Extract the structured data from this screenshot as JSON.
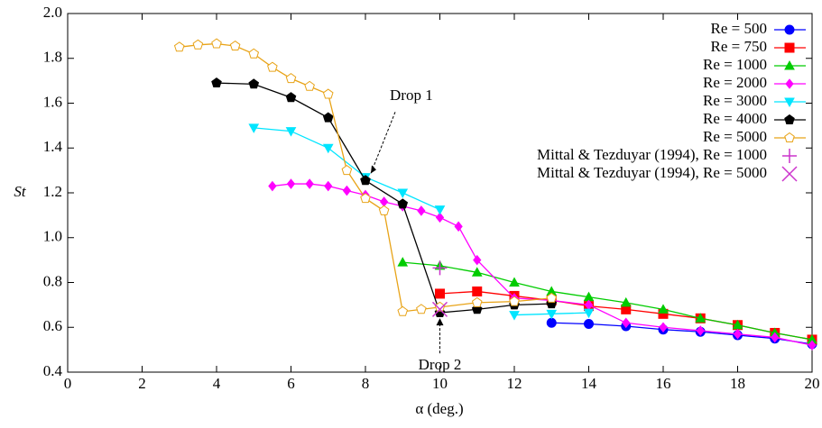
{
  "chart_data": {
    "type": "line",
    "ylabel": "St",
    "xlabel": "α (deg.)",
    "xlim": [
      0,
      20
    ],
    "xticks": [
      0,
      2,
      4,
      6,
      8,
      10,
      12,
      14,
      16,
      18,
      20
    ],
    "ylim": [
      0.4,
      2.0
    ],
    "yticks": [
      0.4,
      0.6,
      0.8,
      {
        "value": 1.0,
        "label": "1.0"
      },
      1.2,
      1.4,
      1.6,
      1.8,
      {
        "value": 2.0,
        "label": "2.0"
      }
    ],
    "legend": "top-right",
    "annotations": [
      {
        "text": "Drop 1",
        "x": 8,
        "y": 1.255
      },
      {
        "text": "Drop 2",
        "x": 10,
        "y": 0.665
      }
    ],
    "series": [
      {
        "name": "Re = 500",
        "color": "#0000ff",
        "marker": "circle",
        "line": true,
        "x": [
          13,
          14,
          15,
          16,
          17,
          18,
          19,
          20
        ],
        "values": [
          0.62,
          0.615,
          0.605,
          0.59,
          0.58,
          0.565,
          0.55,
          0.525
        ]
      },
      {
        "name": "Re = 750",
        "color": "#ff0000",
        "marker": "square",
        "line": true,
        "x": [
          10,
          11,
          12,
          13,
          14,
          15,
          16,
          17,
          18,
          19,
          20
        ],
        "values": [
          0.75,
          0.76,
          0.74,
          0.72,
          0.695,
          0.68,
          0.66,
          0.64,
          0.61,
          0.575,
          0.545
        ]
      },
      {
        "name": "Re = 1000",
        "color": "#00cc00",
        "marker": "triangle",
        "line": true,
        "x": [
          9,
          10,
          11,
          12,
          13,
          14,
          15,
          16,
          17,
          18,
          19,
          20
        ],
        "values": [
          0.89,
          0.875,
          0.845,
          0.8,
          0.76,
          0.735,
          0.71,
          0.68,
          0.64,
          0.61,
          0.575,
          0.545
        ]
      },
      {
        "name": "Re = 2000",
        "color": "#ff00ff",
        "marker": "diamond",
        "line": true,
        "x": [
          5.5,
          6,
          6.5,
          7,
          7.5,
          8,
          8.5,
          9,
          9.5,
          10,
          10.5,
          11,
          12,
          13,
          14,
          15,
          16,
          17,
          18,
          19,
          20
        ],
        "values": [
          1.23,
          1.24,
          1.24,
          1.23,
          1.21,
          1.19,
          1.16,
          1.14,
          1.12,
          1.09,
          1.05,
          0.9,
          0.73,
          0.72,
          0.7,
          0.62,
          0.6,
          0.585,
          0.57,
          0.555,
          0.52
        ]
      },
      {
        "name": "Re = 3000",
        "color": "#00e5ff",
        "marker": "triangle-down",
        "line": true,
        "x": [
          5,
          6,
          7,
          8,
          9,
          10,
          11,
          12,
          13,
          14
        ],
        "values": [
          1.49,
          1.475,
          1.4,
          1.27,
          1.2,
          1.125,
          null,
          0.655,
          0.66,
          0.665
        ]
      },
      {
        "name": "Re = 4000",
        "color": "#000000",
        "marker": "pentagon",
        "line": true,
        "x": [
          4,
          5,
          6,
          7,
          8,
          9,
          10,
          11,
          12,
          13
        ],
        "values": [
          1.69,
          1.685,
          1.625,
          1.535,
          1.255,
          1.15,
          0.665,
          0.68,
          0.7,
          0.705
        ]
      },
      {
        "name": "Re = 5000",
        "color": "#e8a317",
        "marker": "pentagon-open",
        "line": true,
        "x": [
          3,
          3.5,
          4,
          4.5,
          5,
          5.5,
          6,
          6.5,
          7,
          7.5,
          8,
          8.5,
          9,
          9.5,
          10,
          11,
          12,
          13
        ],
        "values": [
          1.85,
          1.86,
          1.865,
          1.855,
          1.82,
          1.76,
          1.71,
          1.675,
          1.64,
          1.3,
          1.175,
          1.12,
          0.67,
          0.68,
          0.69,
          0.71,
          0.715,
          0.73
        ]
      },
      {
        "name": "Mittal & Tezduyar (1994), Re = 1000",
        "color": "#cc33cc",
        "marker": "plus",
        "line": false,
        "x": [
          10
        ],
        "values": [
          0.865
        ]
      },
      {
        "name": "Mittal & Tezduyar (1994), Re = 5000",
        "color": "#cc33cc",
        "marker": "cross",
        "line": false,
        "x": [
          10
        ],
        "values": [
          0.68
        ]
      }
    ]
  }
}
